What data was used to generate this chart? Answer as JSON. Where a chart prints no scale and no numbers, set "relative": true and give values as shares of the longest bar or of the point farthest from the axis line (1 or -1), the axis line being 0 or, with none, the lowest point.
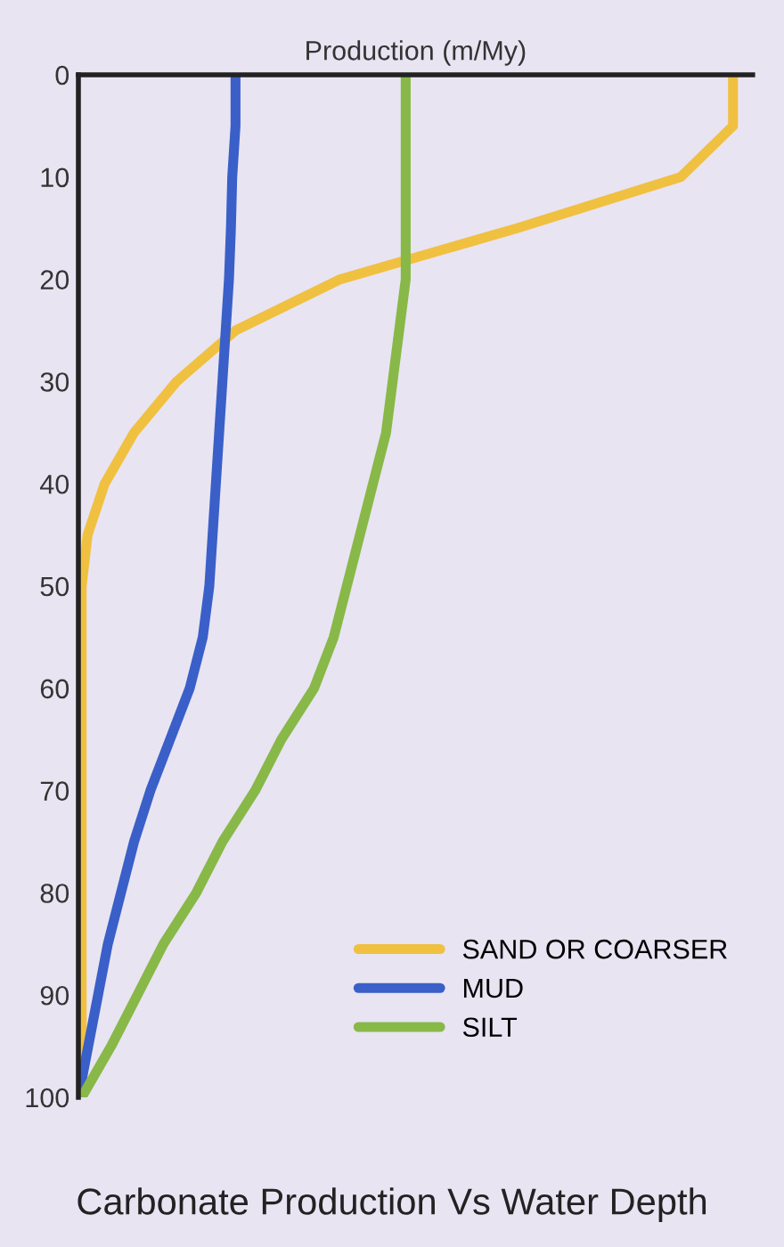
{
  "chart_data": {
    "type": "line",
    "title": "Carbonate Production Vs Water Depth",
    "xlabel": "Production (m/My)",
    "relative": true,
    "orientation": "horizontal",
    "categories": [
      "0",
      null,
      "10",
      null,
      "20",
      null,
      "30",
      null,
      "40",
      null,
      "50",
      null,
      "60",
      null,
      "70",
      null,
      "80",
      null,
      "90",
      null,
      "100"
    ],
    "series": [
      {
        "name": "SAND OR COARSER",
        "color": "#f0c040",
        "values": [
          1,
          1,
          0.92,
          0.67,
          0.4,
          0.24,
          0.15,
          0.085,
          0.04,
          0.014,
          0.005,
          0.005,
          0.005,
          0.005,
          0.005,
          0.005,
          0.005,
          0.005,
          0.005,
          0.005,
          0.005
        ]
      },
      {
        "name": "MUD",
        "color": "#3a5fc8",
        "values": [
          0.24,
          0.24,
          0.235,
          0.233,
          0.23,
          0.225,
          0.22,
          0.215,
          0.21,
          0.205,
          0.2,
          0.19,
          0.17,
          0.14,
          0.11,
          0.085,
          0.065,
          0.045,
          0.03,
          0.015,
          0
        ]
      },
      {
        "name": "SILT",
        "color": "#88b848",
        "values": [
          0.5,
          0.5,
          0.5,
          0.5,
          0.5,
          0.49,
          0.48,
          0.47,
          0.45,
          0.43,
          0.41,
          0.39,
          0.36,
          0.31,
          0.27,
          0.22,
          0.18,
          0.13,
          0.09,
          0.05,
          0.005
        ]
      }
    ],
    "legend": "bottom right"
  }
}
